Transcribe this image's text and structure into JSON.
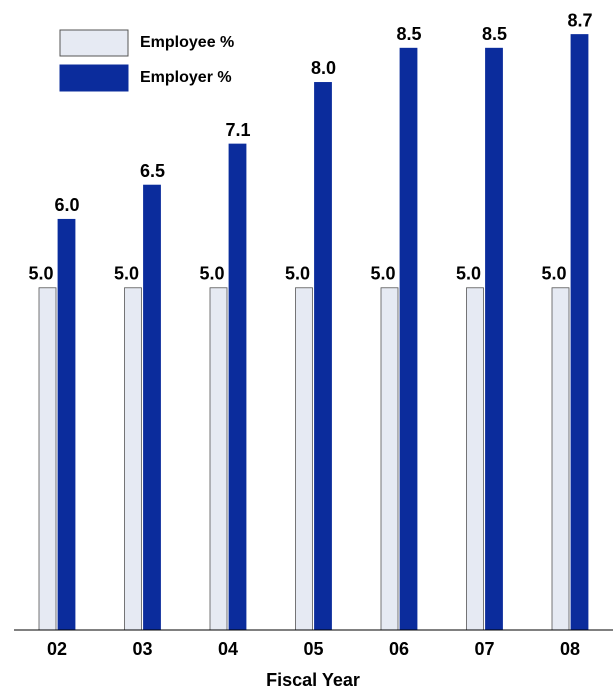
{
  "chart_data": {
    "type": "bar",
    "x_label": "Fiscal Year",
    "categories": [
      "02",
      "03",
      "04",
      "05",
      "06",
      "07",
      "08"
    ],
    "series": [
      {
        "name": "Employee %",
        "color": "#e6eaf3",
        "values": [
          5,
          5,
          5,
          5,
          5,
          5,
          5
        ],
        "value_labels": [
          "5.0",
          "5.0",
          "5.0",
          "5.0",
          "5.0",
          "5.0",
          "5.0"
        ]
      },
      {
        "name": "Employer %",
        "color": "#0b2c9c",
        "values": [
          6,
          6.5,
          7.1,
          8,
          8.5,
          8.5,
          8.7
        ],
        "value_labels": [
          "6.0",
          "6.5",
          "7.1",
          "8.0",
          "8.5",
          "8.5",
          "8.7"
        ]
      }
    ],
    "ylim": [
      0,
      9
    ],
    "legend": "upper left"
  }
}
